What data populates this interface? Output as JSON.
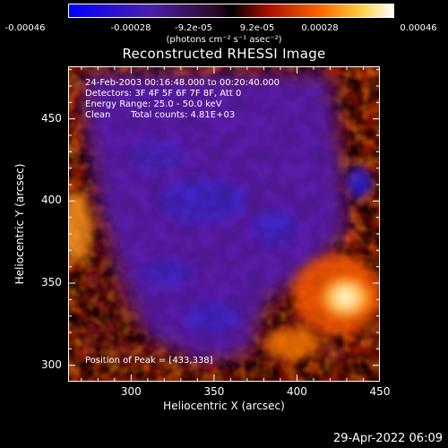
{
  "colorbar": {
    "ticks": [
      "-0.00046",
      "-0.00028",
      "-9.2e-05",
      "9.2e-05",
      "0.00028",
      "0.00046"
    ],
    "unit": "(photons cm⁻² s⁻¹ asec⁻²)"
  },
  "chart_data": {
    "type": "heatmap",
    "title": "Reconstructed RHESSI Image",
    "xlabel": "Heliocentric X (arcsec)",
    "ylabel": "Heliocentric Y (arcsec)",
    "xlim": [
      262,
      450
    ],
    "ylim": [
      290,
      482
    ],
    "xticks": [
      300,
      350,
      400,
      450
    ],
    "yticks": [
      300,
      350,
      400,
      450
    ],
    "xtick_labels": [
      "300",
      "350",
      "400",
      "450"
    ],
    "ytick_labels": [
      "300",
      "350",
      "400",
      "450"
    ],
    "value_range": [
      -0.00046,
      0.00046
    ],
    "colormap": [
      "#0000ff",
      "#5a1ea0",
      "#3a0a3a",
      "#000000",
      "#c81e00",
      "#ff8c00",
      "#ffffff"
    ],
    "peak_position": [
      433,
      338
    ],
    "annotations": {
      "time": "24-Feb-2003 00:16:48.000 to 00:20:40.000",
      "detectors": "Detectors: 3F 4F 5F 6F 7F 8F, Att 0",
      "energy": "Energy Range: 25.0 - 50.0 keV",
      "method": "Clean",
      "counts": "Total counts: 4.81E+03",
      "peak": "Position of Peak = [433,338]"
    }
  },
  "timestamp": "29-Apr-2022 06:09"
}
